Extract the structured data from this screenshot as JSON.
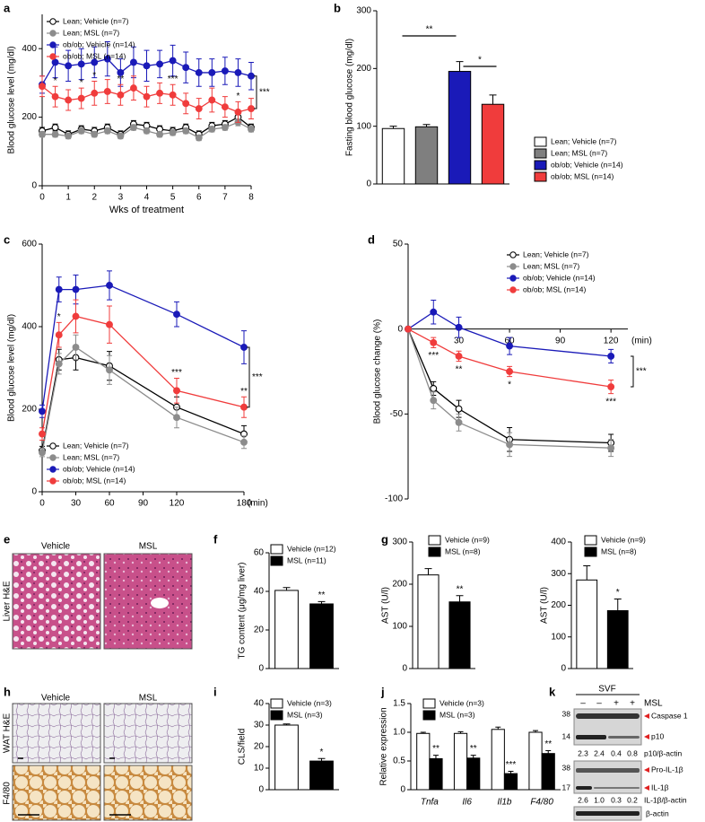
{
  "chart_data": [
    {
      "type": "line",
      "label": "a",
      "xlabel": "Wks of treatment",
      "ylabel": "Blood glucose level (mg/dl)",
      "x": [
        0,
        0.5,
        1,
        1.5,
        2,
        2.5,
        3,
        3.5,
        4,
        4.5,
        5,
        5.5,
        6,
        6.5,
        7,
        7.5,
        8
      ],
      "xlim": [
        0,
        8
      ],
      "xticks": [
        0,
        1,
        2,
        3,
        4,
        5,
        6,
        7,
        8
      ],
      "ylim": [
        0,
        500
      ],
      "yticks": [
        0,
        200,
        400
      ],
      "bracket": "***",
      "series": [
        {
          "name": "Lean; Vehicle (n=7)",
          "color": "#000000",
          "fill": "#ffffff",
          "values": [
            160,
            170,
            150,
            165,
            160,
            170,
            150,
            180,
            175,
            165,
            160,
            170,
            150,
            175,
            180,
            200,
            170
          ],
          "errors": [
            10,
            10,
            10,
            10,
            10,
            10,
            10,
            10,
            10,
            10,
            10,
            10,
            10,
            10,
            10,
            12,
            10
          ]
        },
        {
          "name": "Lean; MSL (n=7)",
          "color": "#8c8c8c",
          "fill": "#8c8c8c",
          "values": [
            150,
            150,
            145,
            160,
            150,
            160,
            145,
            170,
            160,
            150,
            155,
            160,
            140,
            165,
            170,
            185,
            165
          ],
          "errors": [
            8,
            8,
            8,
            8,
            8,
            8,
            8,
            8,
            8,
            8,
            8,
            8,
            8,
            8,
            8,
            10,
            8
          ]
        },
        {
          "name": "ob/ob; Vehicle (n=14)",
          "color": "#1a1ab8",
          "fill": "#1a1ab8",
          "values": [
            295,
            360,
            350,
            355,
            360,
            370,
            330,
            360,
            350,
            355,
            365,
            345,
            330,
            330,
            335,
            330,
            320
          ],
          "errors": [
            25,
            45,
            45,
            45,
            45,
            50,
            40,
            45,
            45,
            40,
            45,
            45,
            40,
            40,
            40,
            40,
            40
          ]
        },
        {
          "name": "ob/ob; MSL (n=14)",
          "color": "#f03c3c",
          "fill": "#f03c3c",
          "values": [
            290,
            260,
            250,
            255,
            270,
            275,
            265,
            285,
            260,
            270,
            265,
            240,
            225,
            250,
            230,
            215,
            225
          ],
          "errors": [
            30,
            30,
            30,
            30,
            35,
            35,
            30,
            35,
            30,
            30,
            30,
            30,
            30,
            35,
            30,
            30,
            30
          ],
          "stars": [
            null,
            "*",
            null,
            "*",
            "*",
            null,
            "**",
            null,
            null,
            null,
            "***",
            null,
            null,
            null,
            null,
            "*",
            null
          ]
        }
      ]
    },
    {
      "type": "bar",
      "label": "b",
      "ylabel": "Fasting blood glucose (mg/dl)",
      "categories": [
        "Lean; Vehicle (n=7)",
        "Lean; MSL (n=7)",
        "ob/ob; Vehicle (n=14)",
        "ob/ob; MSL (n=14)"
      ],
      "colors": [
        "#ffffff",
        "#7f7f7f",
        "#1a1ab8",
        "#f03c3c"
      ],
      "values": [
        96,
        99,
        195,
        138
      ],
      "errors": [
        4,
        4,
        17,
        16
      ],
      "ylim": [
        0,
        300
      ],
      "yticks": [
        0,
        100,
        200,
        300
      ],
      "brackets": [
        "**",
        "*"
      ]
    },
    {
      "type": "line",
      "label": "c",
      "xlabel": "(min)",
      "ylabel": "Blood glucose level (mg/dl)",
      "x": [
        0,
        15,
        30,
        60,
        120,
        180
      ],
      "xlim": [
        0,
        180
      ],
      "xticks": [
        0,
        30,
        60,
        90,
        120,
        180
      ],
      "ylim": [
        0,
        600
      ],
      "yticks": [
        0,
        200,
        400,
        600
      ],
      "bracket": "***",
      "series": [
        {
          "name": "Lean; Vehicle (n=7)",
          "color": "#000000",
          "fill": "#ffffff",
          "values": [
            100,
            320,
            325,
            305,
            205,
            140
          ],
          "errors": [
            10,
            25,
            30,
            35,
            25,
            20
          ]
        },
        {
          "name": "Lean; MSL (n=7)",
          "color": "#8c8c8c",
          "fill": "#8c8c8c",
          "values": [
            95,
            310,
            350,
            295,
            180,
            120
          ],
          "errors": [
            10,
            25,
            30,
            35,
            25,
            15
          ]
        },
        {
          "name": "ob/ob; Vehicle (n=14)",
          "color": "#1a1ab8",
          "fill": "#1a1ab8",
          "values": [
            195,
            490,
            490,
            500,
            430,
            350
          ],
          "errors": [
            15,
            30,
            35,
            35,
            30,
            40
          ]
        },
        {
          "name": "ob/ob; MSL (n=14)",
          "color": "#f03c3c",
          "fill": "#f03c3c",
          "values": [
            140,
            380,
            425,
            405,
            245,
            205
          ],
          "errors": [
            15,
            30,
            40,
            45,
            30,
            25
          ],
          "stars": [
            null,
            "*",
            null,
            null,
            "***",
            "**"
          ]
        }
      ]
    },
    {
      "type": "line",
      "label": "d",
      "xlabel": "(min)",
      "ylabel": "Blood glucose change (%)",
      "x": [
        0,
        15,
        30,
        60,
        120
      ],
      "xlim": [
        0,
        130
      ],
      "xticks": [
        30,
        60,
        90,
        120
      ],
      "ylim": [
        -100,
        50
      ],
      "yticks": [
        -100,
        -50,
        0,
        50
      ],
      "bracket": "***",
      "series": [
        {
          "name": "Lean; Vehicle (n=7)",
          "color": "#000000",
          "fill": "#ffffff",
          "values": [
            0,
            -35,
            -47,
            -65,
            -67
          ],
          "errors": [
            0,
            4,
            5,
            7,
            5
          ]
        },
        {
          "name": "Lean; MSL (n=7)",
          "color": "#8c8c8c",
          "fill": "#8c8c8c",
          "values": [
            0,
            -42,
            -55,
            -68,
            -70
          ],
          "errors": [
            0,
            5,
            5,
            7,
            5
          ]
        },
        {
          "name": "ob/ob; Vehicle (n=14)",
          "color": "#1a1ab8",
          "fill": "#1a1ab8",
          "values": [
            0,
            10,
            1,
            -10,
            -16
          ],
          "errors": [
            0,
            7,
            6,
            5,
            4
          ]
        },
        {
          "name": "ob/ob; MSL (n=14)",
          "color": "#f03c3c",
          "fill": "#f03c3c",
          "values": [
            0,
            -8,
            -16,
            -25,
            -34
          ],
          "errors": [
            0,
            3,
            3,
            3,
            4
          ],
          "stars": [
            null,
            "***",
            "**",
            "*",
            "***"
          ]
        }
      ]
    },
    {
      "type": "bar",
      "label": "f",
      "ylabel": "TG content (μg/mg liver)",
      "categories": [
        "Vehicle (n=12)",
        "MSL (n=11)"
      ],
      "colors": [
        "#ffffff",
        "#000000"
      ],
      "values": [
        40.5,
        33.5
      ],
      "errors": [
        1.5,
        1.2
      ],
      "stars": [
        null,
        "**"
      ],
      "ylim": [
        0,
        60
      ],
      "yticks": [
        0,
        20,
        40,
        60
      ]
    },
    {
      "type": "bar",
      "label": "g",
      "ylabel": "AST (U/l)",
      "categories": [
        "Vehicle (n=9)",
        "MSL (n=8)"
      ],
      "colors": [
        "#ffffff",
        "#000000"
      ],
      "values": [
        222,
        158
      ],
      "errors": [
        15,
        15
      ],
      "stars": [
        null,
        "**"
      ],
      "ylim": [
        0,
        300
      ],
      "yticks": [
        0,
        100,
        200,
        300
      ]
    },
    {
      "type": "bar",
      "ylabel": "AST (U/l)",
      "categories": [
        "Vehicle (n=9)",
        "MSL (n=8)"
      ],
      "colors": [
        "#ffffff",
        "#000000"
      ],
      "values": [
        280,
        183
      ],
      "errors": [
        45,
        37
      ],
      "stars": [
        null,
        "*"
      ],
      "ylim": [
        0,
        400
      ],
      "yticks": [
        0,
        100,
        200,
        300,
        400
      ]
    },
    {
      "type": "bar",
      "label": "i",
      "ylabel": "CLS/field",
      "categories": [
        "Vehicle (n=3)",
        "MSL (n=3)"
      ],
      "colors": [
        "#ffffff",
        "#000000"
      ],
      "values": [
        30,
        13.3
      ],
      "errors": [
        0.5,
        1.2
      ],
      "stars": [
        null,
        "*"
      ],
      "ylim": [
        0,
        40
      ],
      "yticks": [
        0,
        10,
        20,
        30,
        40
      ]
    },
    {
      "type": "bar",
      "label": "j",
      "ylabel": "Relative expression",
      "categories": [
        "Tnfa",
        "Il6",
        "Il1b",
        "F4/80"
      ],
      "series": [
        {
          "name": "Vehicle (n=3)",
          "color": "#ffffff",
          "values": [
            0.98,
            0.98,
            1.05,
            1.0
          ],
          "errors": [
            0.02,
            0.03,
            0.04,
            0.03
          ]
        },
        {
          "name": "MSL (n=3)",
          "color": "#000000",
          "values": [
            0.54,
            0.55,
            0.28,
            0.63
          ],
          "errors": [
            0.06,
            0.05,
            0.04,
            0.05
          ],
          "stars": [
            "**",
            "**",
            "***",
            "**"
          ]
        }
      ],
      "ylim": [
        0,
        1.5
      ],
      "yticks": [
        0,
        0.5,
        {
          "value": 1,
          "label": "1.0"
        },
        1.5
      ]
    }
  ],
  "images": [
    {
      "label": "e",
      "columns": [
        "Vehicle",
        "MSL"
      ],
      "rows": [
        "Liver H&E"
      ]
    },
    {
      "label": "h",
      "columns": [
        "Vehicle",
        "MSL"
      ],
      "rows": [
        "WAT H&E",
        "F4/80"
      ]
    }
  ],
  "blot": {
    "label": "k",
    "group": "SVF",
    "lanes": [
      "–",
      "–",
      "+",
      "+"
    ],
    "treatment": "MSL",
    "panels": [
      {
        "markers": [
          "38",
          "14"
        ],
        "bands": [
          "Caspase 1",
          "p10"
        ],
        "ratios": [
          "2.3",
          "2.4",
          "0.4",
          "0.8"
        ],
        "ratio_label": "p10/β-actin"
      },
      {
        "markers": [
          "38",
          "17"
        ],
        "bands": [
          "Pro-IL-1β",
          "IL-1β"
        ],
        "ratios": [
          "2.6",
          "1.0",
          "0.3",
          "0.2"
        ],
        "ratio_label": "IL-1β/β-actin"
      },
      {
        "bands": [
          "β-actin"
        ]
      }
    ]
  }
}
